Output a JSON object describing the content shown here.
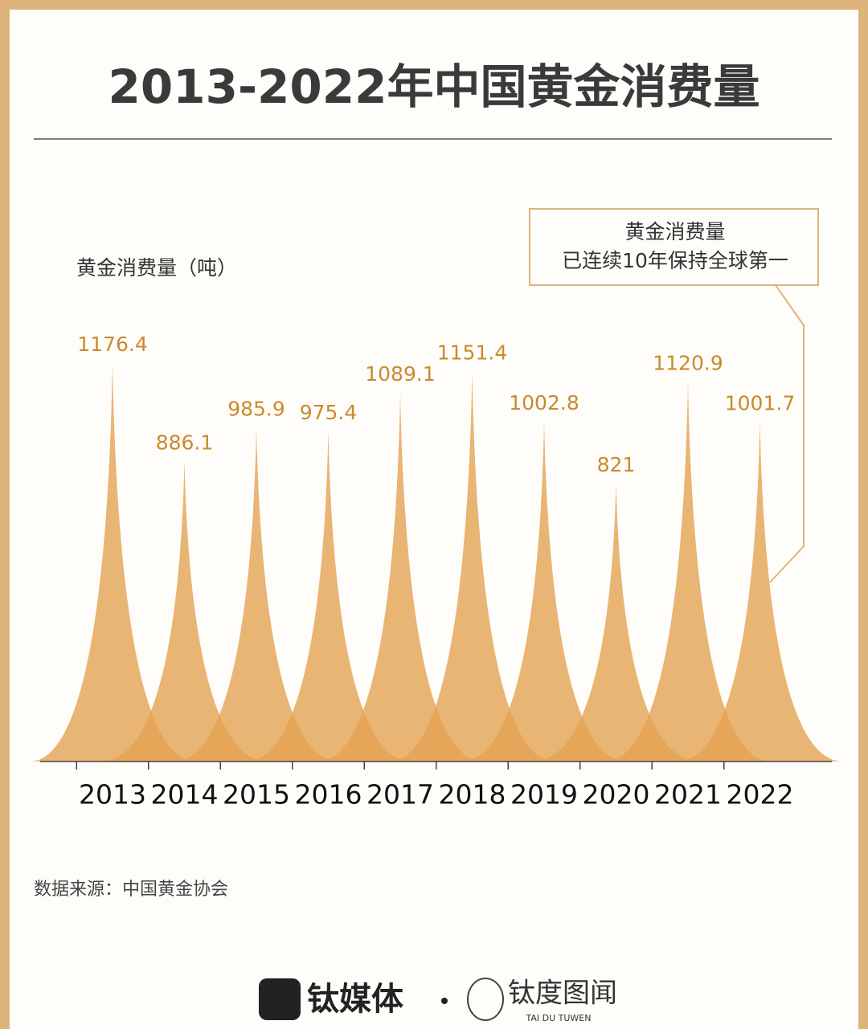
{
  "chart_data": {
    "type": "bar",
    "title": "2013-2022年中国黄金消费量",
    "y_label": "黄金消费量（吨）",
    "annotation": [
      "黄金消费量",
      "已连续10年保持全球第一"
    ],
    "categories": [
      "2013",
      "2014",
      "2015",
      "2016",
      "2017",
      "2018",
      "2019",
      "2020",
      "2021",
      "2022"
    ],
    "values": [
      1176.4,
      886.1,
      985.9,
      975.4,
      1089.1,
      1151.4,
      1002.8,
      821,
      1120.9,
      1001.7
    ],
    "color": "#e3a352",
    "source": "数据来源：中国黄金协会"
  },
  "footer": {
    "brand": "钛媒体",
    "brand2": "钛度图闻",
    "brand2_sub": "TAI DU TUWEN"
  }
}
